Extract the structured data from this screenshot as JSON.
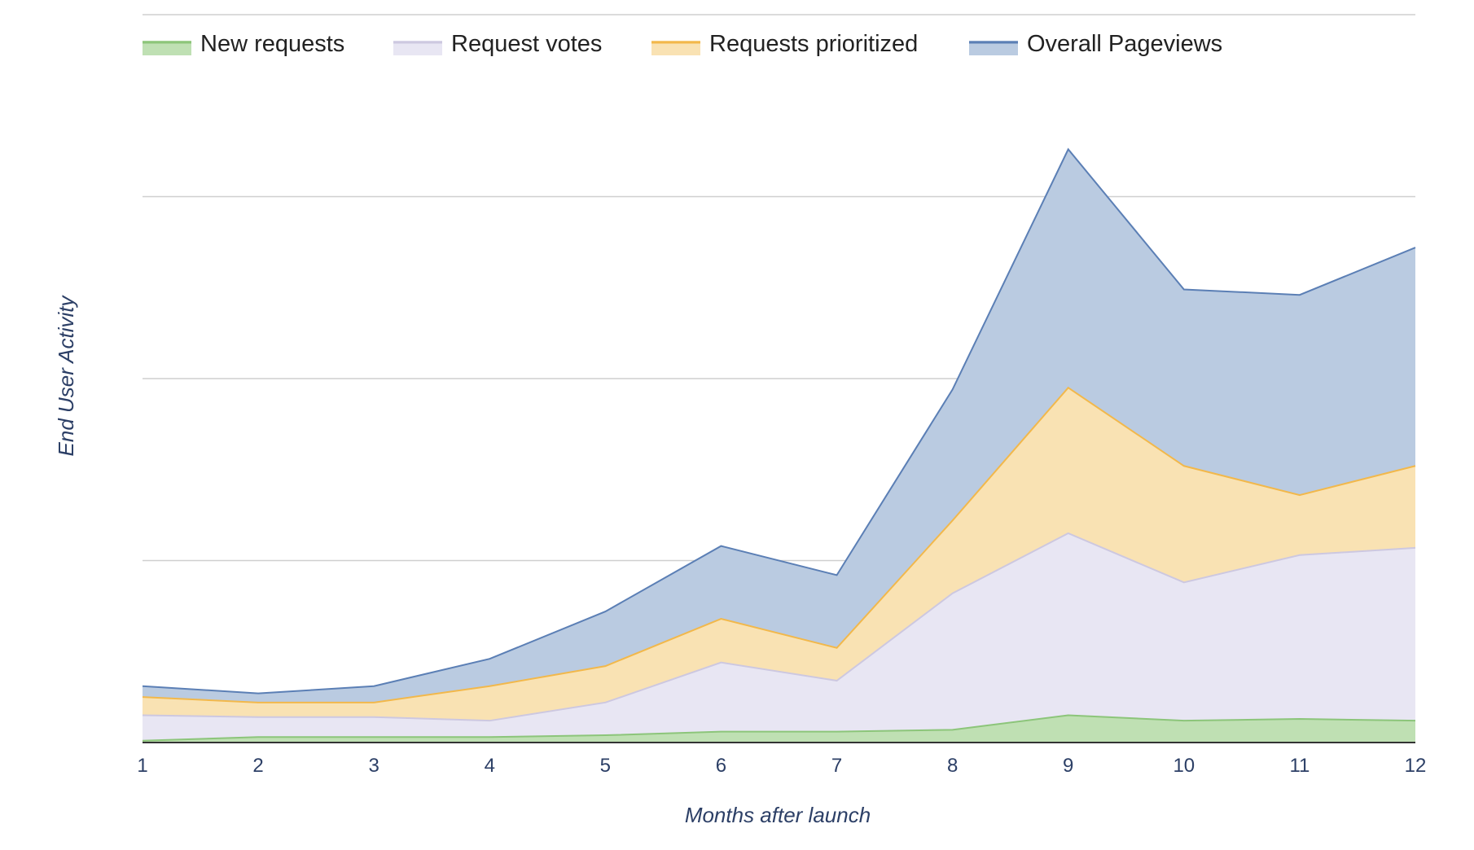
{
  "chart_data": {
    "type": "area",
    "stacked": true,
    "x": [
      1,
      2,
      3,
      4,
      5,
      6,
      7,
      8,
      9,
      10,
      11,
      12
    ],
    "xlabel": "Months after launch",
    "ylabel": "End User Activity",
    "ylim": [
      0,
      4
    ],
    "y_tick_labels_shown": false,
    "grid": true,
    "legend_position": "top",
    "series": [
      {
        "name": "New requests",
        "color": "#8cc57a",
        "fill": "#bfe0b3",
        "values": [
          0.01,
          0.03,
          0.03,
          0.03,
          0.04,
          0.06,
          0.06,
          0.07,
          0.15,
          0.12,
          0.13,
          0.12
        ]
      },
      {
        "name": "Request votes",
        "color": "#cdc8e0",
        "fill": "#e8e6f3",
        "values": [
          0.14,
          0.11,
          0.11,
          0.09,
          0.18,
          0.38,
          0.28,
          0.75,
          1.0,
          0.76,
          0.9,
          0.95
        ]
      },
      {
        "name": "Requests prioritized",
        "color": "#f2b84b",
        "fill": "#f9e2b3",
        "values": [
          0.1,
          0.08,
          0.08,
          0.19,
          0.2,
          0.24,
          0.18,
          0.4,
          0.8,
          0.64,
          0.33,
          0.45
        ]
      },
      {
        "name": "Overall Pageviews",
        "color": "#5b7fb5",
        "fill": "#bacbe1",
        "values": [
          0.06,
          0.05,
          0.09,
          0.15,
          0.3,
          0.4,
          0.4,
          0.72,
          1.31,
          0.97,
          1.1,
          1.2
        ]
      }
    ]
  }
}
